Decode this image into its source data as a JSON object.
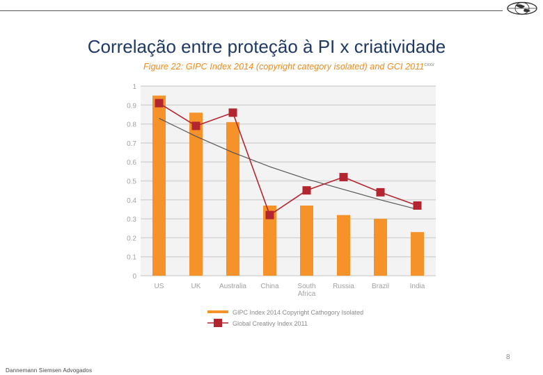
{
  "slide": {
    "title": "Correlação entre proteção à PI x criatividade",
    "page_number": "8",
    "footer": "Dannemann Siemsen Advogados"
  },
  "logo": {
    "icon": "globe-logo-icon"
  },
  "chart_data": {
    "type": "bar",
    "title": "Figure 22: GIPC Index 2014 (copyright category isolated) and GCI 2011",
    "title_superscript": "cxxv",
    "categories": [
      "US",
      "UK",
      "Australia",
      "China",
      "South Africa",
      "Russia",
      "Brazil",
      "India"
    ],
    "category_lines": [
      [
        "US"
      ],
      [
        "UK"
      ],
      [
        "Australia"
      ],
      [
        "China"
      ],
      [
        "South",
        "Africa"
      ],
      [
        "Russia"
      ],
      [
        "Brazil"
      ],
      [
        "India"
      ]
    ],
    "ylim": [
      0,
      1
    ],
    "yticks": [
      "0",
      "0.1",
      "0.2",
      "0.3",
      "0.4",
      "0.5",
      "0.6",
      "0.7",
      "0.8",
      "0.9",
      "1"
    ],
    "grid": true,
    "series": [
      {
        "name": "GIPC Index 2014 Copyright Cathogory Isolated",
        "kind": "bar",
        "color": "#f5922a",
        "values": [
          0.95,
          0.86,
          0.81,
          0.37,
          0.37,
          0.32,
          0.3,
          0.23
        ]
      },
      {
        "name": "Global Creativy Index 2011",
        "kind": "line-marker",
        "color": "#b3262f",
        "values": [
          0.91,
          0.79,
          0.86,
          0.32,
          0.45,
          0.52,
          0.44,
          0.37
        ]
      },
      {
        "name": "trend",
        "kind": "trendline",
        "color": "#555555",
        "values": [
          0.83,
          0.735,
          0.65,
          0.575,
          0.51,
          0.455,
          0.4,
          0.35
        ]
      }
    ],
    "legend": {
      "placement": "bottom",
      "entries": [
        "GIPC Index 2014 Copyright Cathogory Isolated",
        "Global Creativy Index 2011"
      ]
    }
  }
}
